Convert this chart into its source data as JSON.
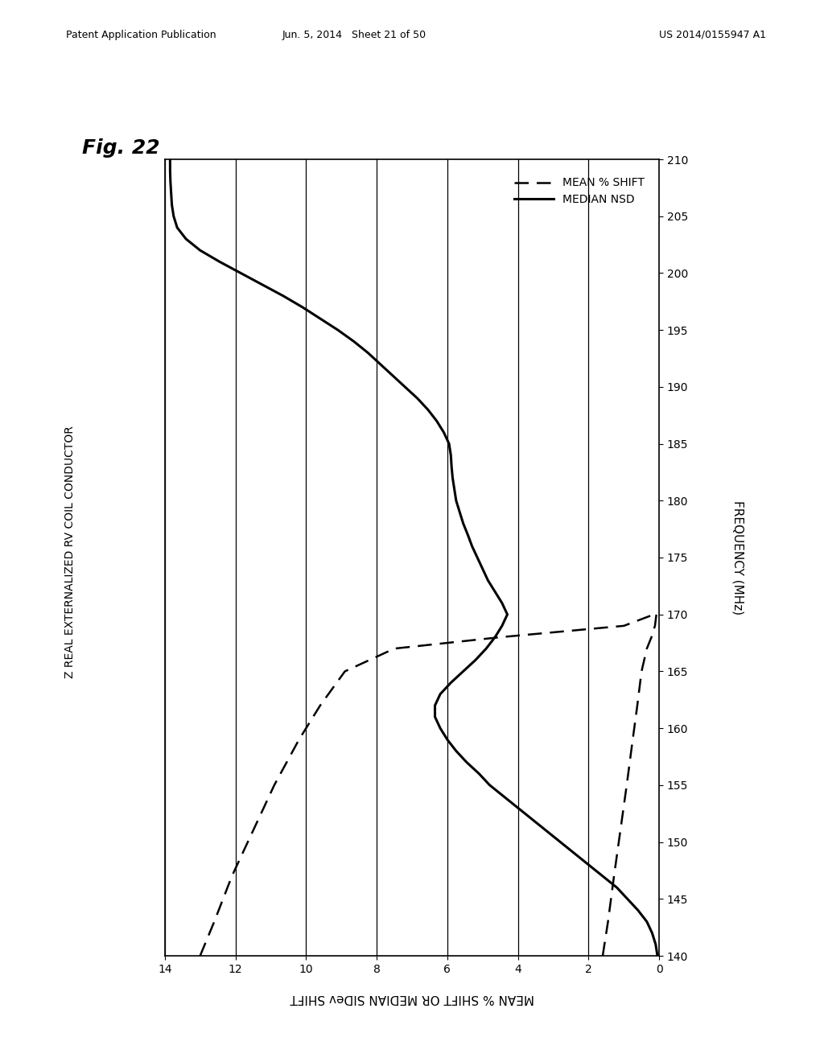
{
  "title": "Fig. 22",
  "left_label": "Z REAL EXTERNALIZED RV COIL CONDUCTOR",
  "bottom_label": "MEAN % SHIFT OR MEDIAN SIDev SHIFT",
  "freq_label": "FREQUENCY (MHz)",
  "freq_min": 140,
  "freq_max": 210,
  "freq_ticks": [
    140,
    145,
    150,
    155,
    160,
    165,
    170,
    175,
    180,
    185,
    190,
    195,
    200,
    205,
    210
  ],
  "y_min": 0,
  "y_max": 14,
  "y_ticks": [
    0,
    2,
    4,
    6,
    8,
    10,
    12,
    14
  ],
  "legend_dashed": "MEAN % SHIFT",
  "legend_solid": "MEDIAN NSD",
  "header_left": "Patent Application Publication",
  "header_mid": "Jun. 5, 2014   Sheet 21 of 50",
  "header_right": "US 2014/0155947 A1",
  "background_color": "#ffffff",
  "grid_x_positions": [
    2,
    4,
    6,
    8,
    10,
    12,
    14
  ],
  "median_nsd_freq": [
    140,
    141,
    142,
    143,
    144,
    145,
    146,
    147,
    148,
    149,
    150,
    151,
    152,
    153,
    154,
    155,
    156,
    157,
    158,
    159,
    160,
    161,
    162,
    163,
    164,
    165,
    166,
    167,
    168,
    169,
    170,
    171,
    172,
    173,
    174,
    175,
    176,
    177,
    178,
    179,
    180,
    181,
    182,
    183,
    184,
    185,
    186,
    187,
    188,
    189,
    190,
    191,
    192,
    193,
    194,
    195,
    196,
    197,
    198,
    199,
    200,
    201,
    202,
    203,
    204,
    205,
    206,
    207,
    208,
    209,
    210
  ],
  "median_nsd_y": [
    0.05,
    0.1,
    0.2,
    0.35,
    0.6,
    0.9,
    1.2,
    1.6,
    2.0,
    2.4,
    2.8,
    3.2,
    3.6,
    4.0,
    4.4,
    4.8,
    5.1,
    5.45,
    5.75,
    6.0,
    6.2,
    6.35,
    6.35,
    6.2,
    5.9,
    5.55,
    5.2,
    4.9,
    4.65,
    4.45,
    4.3,
    4.45,
    4.65,
    4.85,
    5.0,
    5.15,
    5.3,
    5.42,
    5.55,
    5.65,
    5.75,
    5.8,
    5.85,
    5.88,
    5.9,
    5.95,
    6.1,
    6.3,
    6.55,
    6.85,
    7.2,
    7.55,
    7.9,
    8.25,
    8.65,
    9.1,
    9.6,
    10.1,
    10.65,
    11.25,
    11.85,
    12.45,
    13.0,
    13.4,
    13.65,
    13.75,
    13.8,
    13.82,
    13.84,
    13.85,
    13.85
  ],
  "upper_dash_freq": [
    140,
    143,
    147,
    151,
    155,
    159,
    162,
    165,
    167,
    168,
    169,
    170
  ],
  "upper_dash_y": [
    13.0,
    12.6,
    12.1,
    11.5,
    10.9,
    10.2,
    9.6,
    8.9,
    7.5,
    4.5,
    1.0,
    0.15
  ],
  "lower_dash_freq": [
    140,
    143,
    147,
    151,
    155,
    159,
    162,
    165,
    167,
    168,
    169,
    170
  ],
  "lower_dash_y": [
    1.6,
    1.45,
    1.28,
    1.1,
    0.92,
    0.75,
    0.62,
    0.5,
    0.35,
    0.22,
    0.12,
    0.08
  ]
}
